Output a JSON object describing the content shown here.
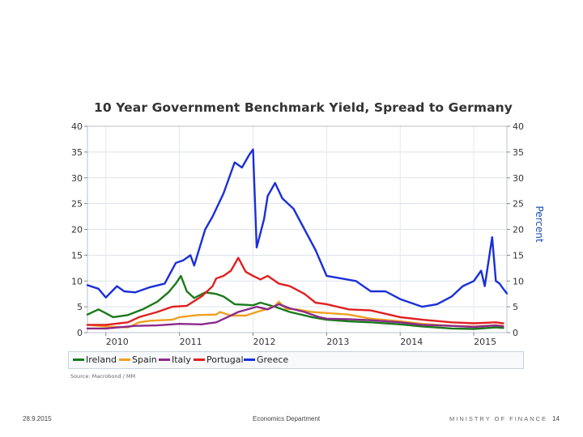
{
  "chart_data": {
    "type": "line",
    "title": "10 Year Government Benchmark Yield, Spread to Germany",
    "ylabel": "Percent",
    "xlabel": "",
    "ylim": [
      0,
      40
    ],
    "xlim": [
      2009.75,
      2015.45
    ],
    "yticks": [
      "0",
      "5",
      "10",
      "15",
      "20",
      "25",
      "30",
      "35",
      "40"
    ],
    "xticks": [
      "2010",
      "2011",
      "2012",
      "2013",
      "2014",
      "2015"
    ],
    "grid": true,
    "series": [
      {
        "name": "Ireland",
        "color": "#1a7a1a",
        "points": [
          [
            2009.75,
            3.5
          ],
          [
            2009.9,
            4.5
          ],
          [
            2010.1,
            3.0
          ],
          [
            2010.3,
            3.4
          ],
          [
            2010.5,
            4.5
          ],
          [
            2010.7,
            6.0
          ],
          [
            2010.85,
            7.8
          ],
          [
            2010.95,
            9.5
          ],
          [
            2011.02,
            11.0
          ],
          [
            2011.1,
            8.0
          ],
          [
            2011.2,
            6.7
          ],
          [
            2011.35,
            7.8
          ],
          [
            2011.5,
            7.5
          ],
          [
            2011.6,
            7.0
          ],
          [
            2011.75,
            5.5
          ],
          [
            2012.0,
            5.3
          ],
          [
            2012.1,
            5.8
          ],
          [
            2012.3,
            5.0
          ],
          [
            2012.5,
            4.0
          ],
          [
            2012.8,
            3.0
          ],
          [
            2013.0,
            2.5
          ],
          [
            2013.3,
            2.2
          ],
          [
            2013.6,
            2.0
          ],
          [
            2014.0,
            1.6
          ],
          [
            2014.3,
            1.2
          ],
          [
            2014.7,
            0.8
          ],
          [
            2015.0,
            0.7
          ],
          [
            2015.3,
            1.0
          ],
          [
            2015.4,
            0.9
          ]
        ]
      },
      {
        "name": "Spain",
        "color": "#f0a020",
        "points": [
          [
            2009.75,
            1.5
          ],
          [
            2010.0,
            1.2
          ],
          [
            2010.3,
            1.0
          ],
          [
            2010.45,
            2.0
          ],
          [
            2010.6,
            2.3
          ],
          [
            2010.9,
            2.5
          ],
          [
            2011.0,
            3.0
          ],
          [
            2011.25,
            3.4
          ],
          [
            2011.5,
            3.5
          ],
          [
            2011.55,
            4.0
          ],
          [
            2011.7,
            3.3
          ],
          [
            2011.9,
            3.3
          ],
          [
            2012.05,
            4.0
          ],
          [
            2012.2,
            4.6
          ],
          [
            2012.3,
            5.2
          ],
          [
            2012.35,
            6.0
          ],
          [
            2012.45,
            4.6
          ],
          [
            2012.6,
            4.5
          ],
          [
            2012.8,
            4.0
          ],
          [
            2013.0,
            3.8
          ],
          [
            2013.3,
            3.5
          ],
          [
            2013.6,
            2.7
          ],
          [
            2014.0,
            2.2
          ],
          [
            2014.3,
            1.7
          ],
          [
            2014.7,
            1.3
          ],
          [
            2015.0,
            1.2
          ],
          [
            2015.3,
            1.4
          ],
          [
            2015.4,
            1.3
          ]
        ]
      },
      {
        "name": "Italy",
        "color": "#8b2a8b",
        "points": [
          [
            2009.75,
            0.8
          ],
          [
            2010.0,
            0.8
          ],
          [
            2010.4,
            1.3
          ],
          [
            2010.7,
            1.4
          ],
          [
            2011.0,
            1.7
          ],
          [
            2011.3,
            1.6
          ],
          [
            2011.5,
            2.0
          ],
          [
            2011.65,
            3.0
          ],
          [
            2011.8,
            4.0
          ],
          [
            2012.05,
            5.0
          ],
          [
            2012.2,
            4.5
          ],
          [
            2012.35,
            5.5
          ],
          [
            2012.5,
            4.7
          ],
          [
            2012.7,
            4.0
          ],
          [
            2012.9,
            3.0
          ],
          [
            2013.0,
            2.7
          ],
          [
            2013.3,
            2.6
          ],
          [
            2013.6,
            2.4
          ],
          [
            2014.0,
            2.0
          ],
          [
            2014.3,
            1.5
          ],
          [
            2014.7,
            1.3
          ],
          [
            2015.0,
            1.1
          ],
          [
            2015.3,
            1.4
          ],
          [
            2015.4,
            1.2
          ]
        ]
      },
      {
        "name": "Portugal",
        "color": "#e02020",
        "points": [
          [
            2009.75,
            1.5
          ],
          [
            2010.0,
            1.5
          ],
          [
            2010.3,
            2.0
          ],
          [
            2010.45,
            3.0
          ],
          [
            2010.7,
            4.0
          ],
          [
            2010.9,
            5.0
          ],
          [
            2011.1,
            5.2
          ],
          [
            2011.3,
            7.0
          ],
          [
            2011.45,
            9.0
          ],
          [
            2011.5,
            10.5
          ],
          [
            2011.6,
            11.0
          ],
          [
            2011.7,
            12.0
          ],
          [
            2011.8,
            14.5
          ],
          [
            2011.9,
            11.8
          ],
          [
            2012.0,
            11.0
          ],
          [
            2012.1,
            10.3
          ],
          [
            2012.2,
            11.0
          ],
          [
            2012.35,
            9.5
          ],
          [
            2012.5,
            9.0
          ],
          [
            2012.7,
            7.5
          ],
          [
            2012.85,
            5.8
          ],
          [
            2013.0,
            5.5
          ],
          [
            2013.3,
            4.5
          ],
          [
            2013.6,
            4.3
          ],
          [
            2014.0,
            3.0
          ],
          [
            2014.3,
            2.5
          ],
          [
            2014.7,
            2.0
          ],
          [
            2015.0,
            1.8
          ],
          [
            2015.3,
            2.0
          ],
          [
            2015.4,
            1.8
          ]
        ]
      },
      {
        "name": "Greece",
        "color": "#1a2fd8",
        "points": [
          [
            2009.75,
            9.2
          ],
          [
            2009.9,
            8.5
          ],
          [
            2010.0,
            6.8
          ],
          [
            2010.15,
            9.0
          ],
          [
            2010.25,
            8.0
          ],
          [
            2010.4,
            7.8
          ],
          [
            2010.6,
            8.8
          ],
          [
            2010.8,
            9.5
          ],
          [
            2010.95,
            13.5
          ],
          [
            2011.05,
            14.0
          ],
          [
            2011.15,
            15.0
          ],
          [
            2011.2,
            13.0
          ],
          [
            2011.35,
            20.0
          ],
          [
            2011.45,
            22.5
          ],
          [
            2011.6,
            27.0
          ],
          [
            2011.75,
            33.0
          ],
          [
            2011.85,
            32.0
          ],
          [
            2011.95,
            34.5
          ],
          [
            2012.0,
            35.5
          ],
          [
            2012.05,
            16.5
          ],
          [
            2012.15,
            22.0
          ],
          [
            2012.2,
            26.5
          ],
          [
            2012.3,
            29.0
          ],
          [
            2012.4,
            26.0
          ],
          [
            2012.55,
            24.0
          ],
          [
            2012.7,
            20.0
          ],
          [
            2012.85,
            16.0
          ],
          [
            2013.0,
            11.0
          ],
          [
            2013.2,
            10.5
          ],
          [
            2013.4,
            10.0
          ],
          [
            2013.6,
            8.0
          ],
          [
            2013.8,
            8.0
          ],
          [
            2014.0,
            6.5
          ],
          [
            2014.3,
            5.0
          ],
          [
            2014.5,
            5.5
          ],
          [
            2014.7,
            7.0
          ],
          [
            2014.85,
            9.0
          ],
          [
            2015.0,
            10.0
          ],
          [
            2015.1,
            12.0
          ],
          [
            2015.15,
            9.0
          ],
          [
            2015.25,
            18.5
          ],
          [
            2015.3,
            10.0
          ],
          [
            2015.35,
            9.5
          ],
          [
            2015.4,
            8.5
          ],
          [
            2015.45,
            7.6
          ]
        ]
      }
    ]
  },
  "legend": {
    "items": [
      {
        "label": "Ireland",
        "color": "#1a7a1a"
      },
      {
        "label": "Spain",
        "color": "#f0a020"
      },
      {
        "label": "Italy",
        "color": "#8b2a8b"
      },
      {
        "label": "Portugal",
        "color": "#e02020"
      },
      {
        "label": "Greece",
        "color": "#1a2fd8"
      }
    ]
  },
  "source": "Source: Macrobond / MM",
  "footer": {
    "date": "28.9.2015",
    "department": "Economics Department",
    "ministry": "MINISTRY OF FINANCE",
    "page": "14"
  }
}
